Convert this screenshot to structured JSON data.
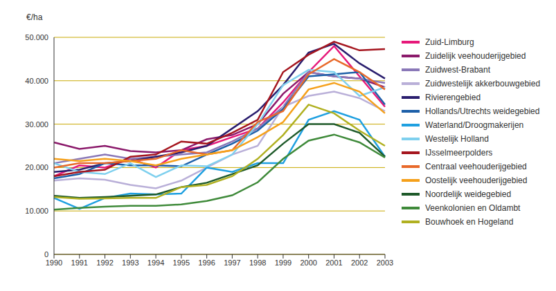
{
  "chart_data": {
    "type": "line",
    "ylabel": "€/ha",
    "categories": [
      "1990",
      "1991",
      "1992",
      "1993",
      "1994",
      "1995",
      "1996",
      "1997",
      "1998",
      "1999",
      "2000",
      "2001",
      "2002",
      "2003"
    ],
    "ylim": [
      0,
      50000
    ],
    "yticks": [
      0,
      {
        "value": 10000,
        "label": "10.000"
      },
      {
        "value": 20000,
        "label": "20.000"
      },
      {
        "value": 30000,
        "label": "30.000"
      },
      {
        "value": 40000,
        "label": "40.000"
      },
      {
        "value": 50000,
        "label": "50.000"
      }
    ],
    "grid": true,
    "legend": "right",
    "series": [
      {
        "name": "Zuid-Limburg",
        "color": "#e6197a",
        "values": [
          18000,
          20500,
          20000,
          22000,
          20000,
          24000,
          25000,
          27000,
          29000,
          35000,
          42000,
          48000,
          41000,
          34000
        ]
      },
      {
        "name": "Zuidelijk veehouderijgebied",
        "color": "#8b1a6b",
        "values": [
          25800,
          24300,
          25000,
          23800,
          23500,
          24000,
          26500,
          27500,
          30000,
          37000,
          42000,
          41000,
          40500,
          38500
        ]
      },
      {
        "name": "Zuidwest-Brabant",
        "color": "#8a78b8",
        "values": [
          21000,
          22000,
          23000,
          22000,
          22500,
          23000,
          23500,
          26000,
          29000,
          34000,
          42000,
          41000,
          40500,
          39500
        ]
      },
      {
        "name": "Zuidwestelijk akkerbouwgebied",
        "color": "#b9afd8",
        "values": [
          17000,
          17500,
          17200,
          16000,
          15200,
          17000,
          20000,
          23000,
          25000,
          34000,
          36500,
          37500,
          36000,
          33000
        ]
      },
      {
        "name": "Rivierengebied",
        "color": "#2a1e6e",
        "values": [
          19000,
          19500,
          21000,
          21500,
          22500,
          23500,
          25000,
          29000,
          33000,
          39000,
          46500,
          48500,
          44000,
          40500
        ]
      },
      {
        "name": "Hollands/Utrechts weidegebied",
        "color": "#1d5fa8",
        "values": [
          17500,
          18500,
          21000,
          20500,
          20500,
          20300,
          23000,
          25500,
          28500,
          33500,
          41000,
          41500,
          42000,
          34500
        ]
      },
      {
        "name": "Waterland/Droogmakerijen",
        "color": "#1fa0e0",
        "values": [
          13000,
          10500,
          13000,
          14000,
          13800,
          14000,
          20000,
          19000,
          21000,
          21000,
          31000,
          33000,
          31000,
          22500
        ]
      },
      {
        "name": "Westelijk Holland",
        "color": "#7fd0ee",
        "values": [
          21000,
          19000,
          18500,
          21000,
          17800,
          20500,
          20300,
          23000,
          30000,
          39000,
          42500,
          42000,
          36500,
          38500
        ]
      },
      {
        "name": "IJsselmeerpolders",
        "color": "#a5151e",
        "values": [
          18000,
          19000,
          19500,
          22500,
          23000,
          26000,
          25500,
          28000,
          31000,
          42000,
          46000,
          49000,
          47000,
          47300
        ]
      },
      {
        "name": "Centraal veehouderijgebied",
        "color": "#e8692a",
        "values": [
          20000,
          21000,
          21000,
          21500,
          22000,
          24000,
          23000,
          24000,
          30500,
          33000,
          41500,
          45000,
          42000,
          38000
        ]
      },
      {
        "name": "Oostelijk veehouderijgebied",
        "color": "#f5a01a",
        "values": [
          22000,
          21500,
          22000,
          21500,
          20500,
          22000,
          23000,
          24000,
          27000,
          30500,
          38000,
          39500,
          37500,
          32500
        ]
      },
      {
        "name": "Noordelijk weidegebied",
        "color": "#1e5a2a",
        "values": [
          13500,
          13000,
          13200,
          13500,
          13800,
          15500,
          16500,
          18500,
          20500,
          25500,
          30000,
          30000,
          28000,
          22500
        ]
      },
      {
        "name": "Veenkolonien en Oldambt",
        "color": "#3f8a3a",
        "values": [
          10300,
          10700,
          11000,
          11200,
          11200,
          11500,
          12300,
          13600,
          16600,
          22000,
          26200,
          27600,
          25800,
          22300
        ]
      },
      {
        "name": "Bouwhoek en Hogeland",
        "color": "#b0b020",
        "values": [
          13200,
          12800,
          12900,
          13000,
          13000,
          15500,
          16000,
          18000,
          22000,
          27500,
          34500,
          32500,
          28500,
          25000
        ]
      }
    ]
  }
}
